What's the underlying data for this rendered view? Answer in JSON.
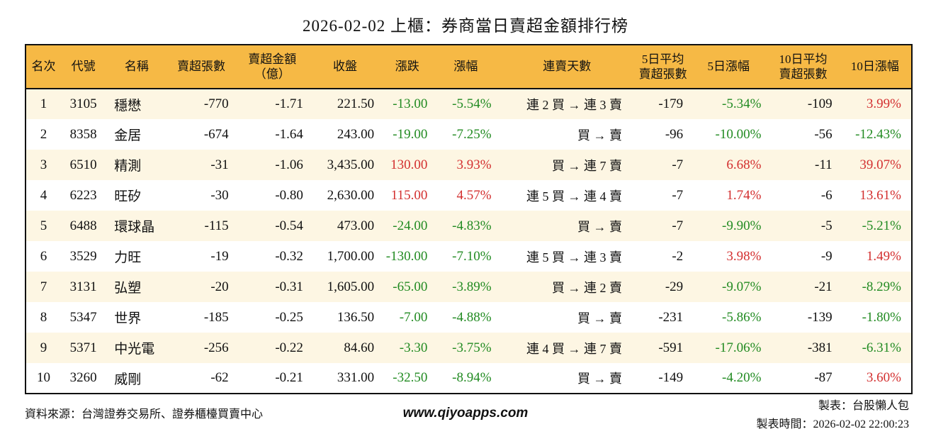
{
  "page": {
    "title": "2026-02-02 上櫃：券商當日賣超金額排行榜"
  },
  "colors": {
    "header_bg": "#F6B945",
    "row_alt_bg": "#FDF6E3",
    "row_bg": "#FFFFFF",
    "positive_red": "#D32F2F",
    "negative_green": "#228B22",
    "border": "#111111"
  },
  "chart_data": {
    "type": "table",
    "title": "2026-02-02 上櫃：券商當日賣超金額排行榜",
    "columns": [
      "名次",
      "代號",
      "名稱",
      "賣超張數",
      "賣超金額（億）",
      "收盤",
      "漲跌",
      "漲幅",
      "連賣天數",
      "5日平均賣超張數",
      "5日漲幅",
      "10日平均賣超張數",
      "10日漲幅"
    ],
    "header_display": [
      "名次",
      "代號",
      "名稱",
      "賣超張數",
      "賣超金額\n（億）",
      "收盤",
      "漲跌",
      "漲幅",
      "連賣天數",
      "5日平均\n賣超張數",
      "5日漲幅",
      "10日平均\n賣超張數",
      "10日漲幅"
    ],
    "column_keys": [
      "rank",
      "code",
      "name",
      "sell-volume",
      "sell-amount",
      "close",
      "change",
      "change-pct",
      "streak",
      "avg5-volume",
      "pct5",
      "avg10-volume",
      "pct10"
    ],
    "signed_color_column_indexes": [
      6,
      7,
      10,
      12
    ],
    "color_rule": {
      "negative": "green",
      "positive": "red"
    },
    "rows": [
      [
        "1",
        "3105",
        "穩懋",
        "-770",
        "-1.71",
        "221.50",
        "-13.00",
        "-5.54%",
        "連 2 買 → 連 3 賣",
        "-179",
        "-5.34%",
        "-109",
        "3.99%"
      ],
      [
        "2",
        "8358",
        "金居",
        "-674",
        "-1.64",
        "243.00",
        "-19.00",
        "-7.25%",
        "買 → 賣",
        "-96",
        "-10.00%",
        "-56",
        "-12.43%"
      ],
      [
        "3",
        "6510",
        "精測",
        "-31",
        "-1.06",
        "3,435.00",
        "130.00",
        "3.93%",
        "買 → 連 7 賣",
        "-7",
        "6.68%",
        "-11",
        "39.07%"
      ],
      [
        "4",
        "6223",
        "旺矽",
        "-30",
        "-0.80",
        "2,630.00",
        "115.00",
        "4.57%",
        "連 5 買 → 連 4 賣",
        "-7",
        "1.74%",
        "-6",
        "13.61%"
      ],
      [
        "5",
        "6488",
        "環球晶",
        "-115",
        "-0.54",
        "473.00",
        "-24.00",
        "-4.83%",
        "買 → 賣",
        "-7",
        "-9.90%",
        "-5",
        "-5.21%"
      ],
      [
        "6",
        "3529",
        "力旺",
        "-19",
        "-0.32",
        "1,700.00",
        "-130.00",
        "-7.10%",
        "連 5 買 → 連 3 賣",
        "-2",
        "3.98%",
        "-9",
        "1.49%"
      ],
      [
        "7",
        "3131",
        "弘塑",
        "-20",
        "-0.31",
        "1,605.00",
        "-65.00",
        "-3.89%",
        "買 → 連 2 賣",
        "-29",
        "-9.07%",
        "-21",
        "-8.29%"
      ],
      [
        "8",
        "5347",
        "世界",
        "-185",
        "-0.25",
        "136.50",
        "-7.00",
        "-4.88%",
        "買 → 賣",
        "-231",
        "-5.86%",
        "-139",
        "-1.80%"
      ],
      [
        "9",
        "5371",
        "中光電",
        "-256",
        "-0.22",
        "84.60",
        "-3.30",
        "-3.75%",
        "連 4 買 → 連 7 賣",
        "-591",
        "-17.06%",
        "-381",
        "-6.31%"
      ],
      [
        "10",
        "3260",
        "威剛",
        "-62",
        "-0.21",
        "331.00",
        "-32.50",
        "-8.94%",
        "買 → 賣",
        "-149",
        "-4.20%",
        "-87",
        "3.60%"
      ]
    ]
  },
  "footer": {
    "source": "資料來源：台灣證券交易所、證券櫃檯買賣中心",
    "website": "www.qiyoapps.com",
    "maker": "製表：台股懶人包",
    "made_time": "製表時間：2026-02-02 22:00:23"
  }
}
